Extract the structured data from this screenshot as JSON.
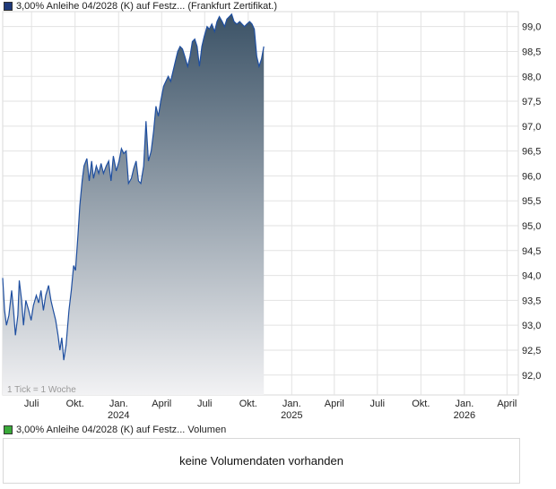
{
  "legend": {
    "price_label": "3,00% Anleihe 04/2028 (K) auf Festz... (Frankfurt Zertifikat.)",
    "price_color": "#1f3a7a",
    "volume_label": "3,00% Anleihe 04/2028 (K) auf Festz... Volumen",
    "volume_color": "#3aaa3a"
  },
  "tick_note": "1 Tick = 1 Woche",
  "volume_panel": {
    "message": "keine Volumendaten vorhanden"
  },
  "colors": {
    "line": "#1f4fa0",
    "area_top": "#3b5266",
    "area_bottom": "#f2f2f4",
    "grid": "#e2e2e2"
  },
  "chart_data": {
    "type": "area",
    "y_axis_side": "right",
    "ylim": [
      91.6,
      99.3
    ],
    "yticks": [
      "92,0",
      "92,5",
      "93,0",
      "93,5",
      "94,0",
      "94,5",
      "95,0",
      "95,5",
      "96,0",
      "96,5",
      "97,0",
      "97,5",
      "98,0",
      "98,5",
      "99,0"
    ],
    "xticks": [
      {
        "label": "Juli",
        "sub": "",
        "x": "2023-07"
      },
      {
        "label": "Okt.",
        "sub": "",
        "x": "2023-10"
      },
      {
        "label": "Jan.",
        "sub": "2024",
        "x": "2024-01"
      },
      {
        "label": "April",
        "sub": "",
        "x": "2024-04"
      },
      {
        "label": "Juli",
        "sub": "",
        "x": "2024-07"
      },
      {
        "label": "Okt.",
        "sub": "",
        "x": "2024-10"
      },
      {
        "label": "Jan.",
        "sub": "2025",
        "x": "2025-01"
      },
      {
        "label": "April",
        "sub": "",
        "x": "2025-04"
      },
      {
        "label": "Juli",
        "sub": "",
        "x": "2025-07"
      },
      {
        "label": "Okt.",
        "sub": "",
        "x": "2025-10"
      },
      {
        "label": "Jan.",
        "sub": "2026",
        "x": "2026-01"
      },
      {
        "label": "April",
        "sub": "",
        "x": "2026-04"
      }
    ],
    "series": [
      {
        "name": "3,00% Anleihe 04/2028 (K) auf Festz...",
        "points": [
          [
            "2023-05-01",
            93.95
          ],
          [
            "2023-05-05",
            93.3
          ],
          [
            "2023-05-09",
            93.0
          ],
          [
            "2023-05-14",
            93.2
          ],
          [
            "2023-05-20",
            93.7
          ],
          [
            "2023-05-24",
            93.3
          ],
          [
            "2023-05-28",
            92.8
          ],
          [
            "2023-06-02",
            93.2
          ],
          [
            "2023-06-05",
            93.9
          ],
          [
            "2023-06-10",
            93.5
          ],
          [
            "2023-06-14",
            93.0
          ],
          [
            "2023-06-19",
            93.5
          ],
          [
            "2023-06-25",
            93.3
          ],
          [
            "2023-06-30",
            93.1
          ],
          [
            "2023-07-05",
            93.4
          ],
          [
            "2023-07-11",
            93.6
          ],
          [
            "2023-07-16",
            93.45
          ],
          [
            "2023-07-21",
            93.7
          ],
          [
            "2023-07-26",
            93.3
          ],
          [
            "2023-07-31",
            93.6
          ],
          [
            "2023-08-06",
            93.8
          ],
          [
            "2023-08-11",
            93.5
          ],
          [
            "2023-08-16",
            93.3
          ],
          [
            "2023-08-21",
            93.1
          ],
          [
            "2023-08-26",
            92.8
          ],
          [
            "2023-08-30",
            92.5
          ],
          [
            "2023-09-03",
            92.75
          ],
          [
            "2023-09-07",
            92.3
          ],
          [
            "2023-09-12",
            92.6
          ],
          [
            "2023-09-18",
            93.3
          ],
          [
            "2023-09-23",
            93.7
          ],
          [
            "2023-09-28",
            94.2
          ],
          [
            "2023-10-02",
            94.1
          ],
          [
            "2023-10-07",
            94.8
          ],
          [
            "2023-10-11",
            95.4
          ],
          [
            "2023-10-16",
            95.9
          ],
          [
            "2023-10-20",
            96.2
          ],
          [
            "2023-10-26",
            96.35
          ],
          [
            "2023-10-31",
            95.9
          ],
          [
            "2023-11-05",
            96.3
          ],
          [
            "2023-11-09",
            95.95
          ],
          [
            "2023-11-15",
            96.2
          ],
          [
            "2023-11-20",
            96.05
          ],
          [
            "2023-11-25",
            96.25
          ],
          [
            "2023-11-30",
            96.05
          ],
          [
            "2023-12-06",
            96.2
          ],
          [
            "2023-12-11",
            96.3
          ],
          [
            "2023-12-16",
            95.9
          ],
          [
            "2023-12-21",
            96.4
          ],
          [
            "2023-12-27",
            96.1
          ],
          [
            "2024-01-02",
            96.3
          ],
          [
            "2024-01-07",
            96.55
          ],
          [
            "2024-01-12",
            96.45
          ],
          [
            "2024-01-17",
            96.5
          ],
          [
            "2024-01-22",
            95.85
          ],
          [
            "2024-01-28",
            95.95
          ],
          [
            "2024-02-02",
            96.15
          ],
          [
            "2024-02-07",
            96.3
          ],
          [
            "2024-02-12",
            95.9
          ],
          [
            "2024-02-17",
            95.85
          ],
          [
            "2024-02-23",
            96.2
          ],
          [
            "2024-02-28",
            97.1
          ],
          [
            "2024-03-04",
            96.3
          ],
          [
            "2024-03-10",
            96.5
          ],
          [
            "2024-03-15",
            96.9
          ],
          [
            "2024-03-20",
            97.4
          ],
          [
            "2024-03-25",
            97.2
          ],
          [
            "2024-03-30",
            97.5
          ],
          [
            "2024-04-05",
            97.8
          ],
          [
            "2024-04-10",
            97.9
          ],
          [
            "2024-04-15",
            98.0
          ],
          [
            "2024-04-20",
            97.9
          ],
          [
            "2024-04-25",
            98.1
          ],
          [
            "2024-04-30",
            98.3
          ],
          [
            "2024-05-05",
            98.5
          ],
          [
            "2024-05-10",
            98.6
          ],
          [
            "2024-05-15",
            98.55
          ],
          [
            "2024-05-20",
            98.4
          ],
          [
            "2024-05-26",
            98.2
          ],
          [
            "2024-05-31",
            98.4
          ],
          [
            "2024-06-05",
            98.7
          ],
          [
            "2024-06-10",
            98.75
          ],
          [
            "2024-06-15",
            98.6
          ],
          [
            "2024-06-20",
            98.2
          ],
          [
            "2024-06-25",
            98.6
          ],
          [
            "2024-06-30",
            98.8
          ],
          [
            "2024-07-06",
            99.0
          ],
          [
            "2024-07-11",
            98.95
          ],
          [
            "2024-07-16",
            99.05
          ],
          [
            "2024-07-22",
            98.9
          ],
          [
            "2024-07-27",
            99.1
          ],
          [
            "2024-08-01",
            99.2
          ],
          [
            "2024-08-07",
            99.1
          ],
          [
            "2024-08-12",
            99.0
          ],
          [
            "2024-08-17",
            99.15
          ],
          [
            "2024-08-22",
            99.2
          ],
          [
            "2024-08-27",
            99.25
          ],
          [
            "2024-09-01",
            99.1
          ],
          [
            "2024-09-07",
            99.05
          ],
          [
            "2024-09-13",
            99.1
          ],
          [
            "2024-09-18",
            99.05
          ],
          [
            "2024-09-23",
            99.0
          ],
          [
            "2024-09-28",
            99.05
          ],
          [
            "2024-10-04",
            99.1
          ],
          [
            "2024-10-09",
            99.05
          ],
          [
            "2024-10-14",
            98.95
          ],
          [
            "2024-10-19",
            98.4
          ],
          [
            "2024-10-24",
            98.2
          ],
          [
            "2024-10-29",
            98.35
          ],
          [
            "2024-11-03",
            98.6
          ]
        ]
      }
    ]
  }
}
